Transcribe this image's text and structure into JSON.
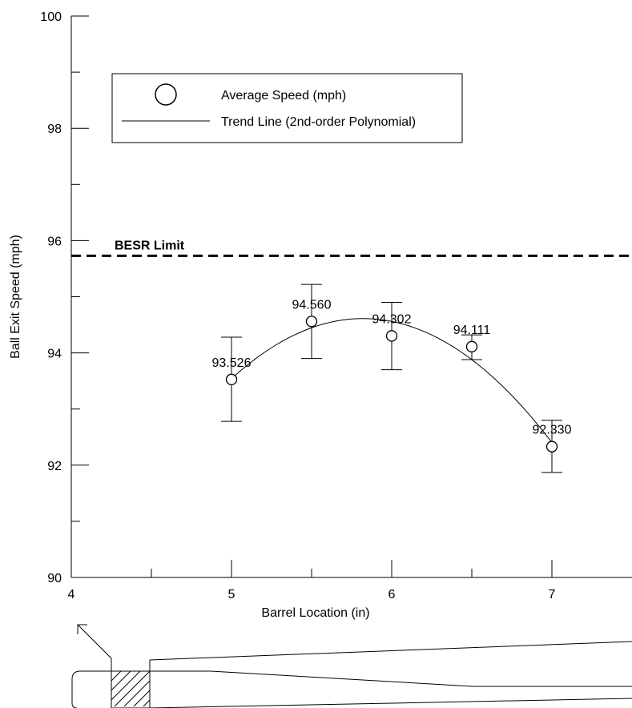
{
  "chart_data": {
    "type": "scatter",
    "xlabel": "Barrel Location (in)",
    "ylabel": "Ball Exit Speed (mph)",
    "xlim": [
      4,
      7.5
    ],
    "ylim": [
      90,
      100
    ],
    "x_ticks": [
      "4",
      "5",
      "6",
      "7"
    ],
    "y_ticks": [
      "90",
      "92",
      "94",
      "96",
      "98",
      "100"
    ],
    "series": [
      {
        "name": "Average Speed (mph)",
        "marker": "open-circle",
        "x": [
          5,
          5.5,
          6,
          6.5,
          7
        ],
        "y": [
          93.526,
          94.56,
          94.302,
          94.111,
          92.33
        ],
        "labels": [
          "93.526",
          "94.560",
          "94.302",
          "94.111",
          "92.330"
        ],
        "error_low": [
          92.78,
          93.9,
          93.7,
          93.88,
          91.87
        ],
        "error_high": [
          94.28,
          95.22,
          94.9,
          94.32,
          92.8
        ]
      },
      {
        "name": "Trend Line (2nd-order Polynomial)",
        "type": "line",
        "fit": "2nd-order polynomial"
      }
    ],
    "reference_line": {
      "label": "BESR Limit",
      "y": 95.73,
      "style": "dashed"
    },
    "legend": {
      "placement": "top-left",
      "entries": [
        "Average Speed (mph)",
        "Trend Line (2nd-order Polynomial)"
      ]
    },
    "grid": false,
    "annotation": "bat-barrel-diagram"
  },
  "colors": {
    "ink": "#000000",
    "background": "#ffffff"
  }
}
